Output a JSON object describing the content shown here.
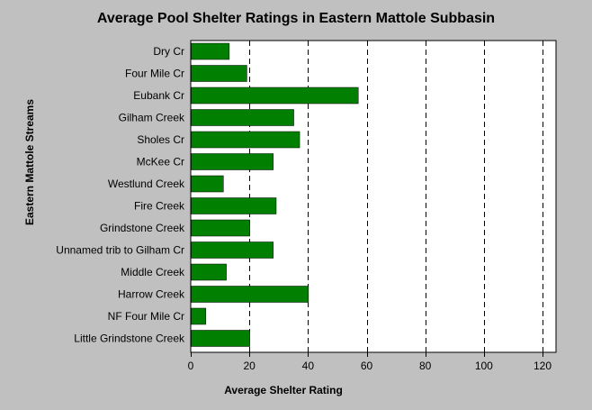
{
  "chart_data": {
    "type": "bar",
    "orientation": "horizontal",
    "title": "Average Pool Shelter Ratings in Eastern Mattole Subbasin",
    "xlabel": "Average Shelter Rating",
    "ylabel": "Eastern Mattole Streams",
    "categories": [
      "Dry Cr",
      "Four Mile Cr",
      "Eubank Cr",
      "Gilham Creek",
      "Sholes Cr",
      "McKee Cr",
      "Westlund Creek",
      "Fire Creek",
      "Grindstone Creek",
      "Unnamed trib to Gilham Cr",
      "Middle Creek",
      "Harrow Creek",
      "NF Four Mile Cr",
      "Little Grindstone Creek"
    ],
    "values": [
      13,
      19,
      57,
      35,
      37,
      28,
      11,
      29,
      20,
      28,
      12,
      40,
      5,
      20
    ],
    "xlim": [
      0,
      120
    ],
    "xticks": [
      0,
      20,
      40,
      60,
      80,
      100,
      120
    ],
    "grid": "vertical dashed",
    "legend": "none",
    "colors": {
      "bar": "#007f00",
      "plot_background": "#ffffff",
      "page_background": "#c0c0c0"
    }
  }
}
